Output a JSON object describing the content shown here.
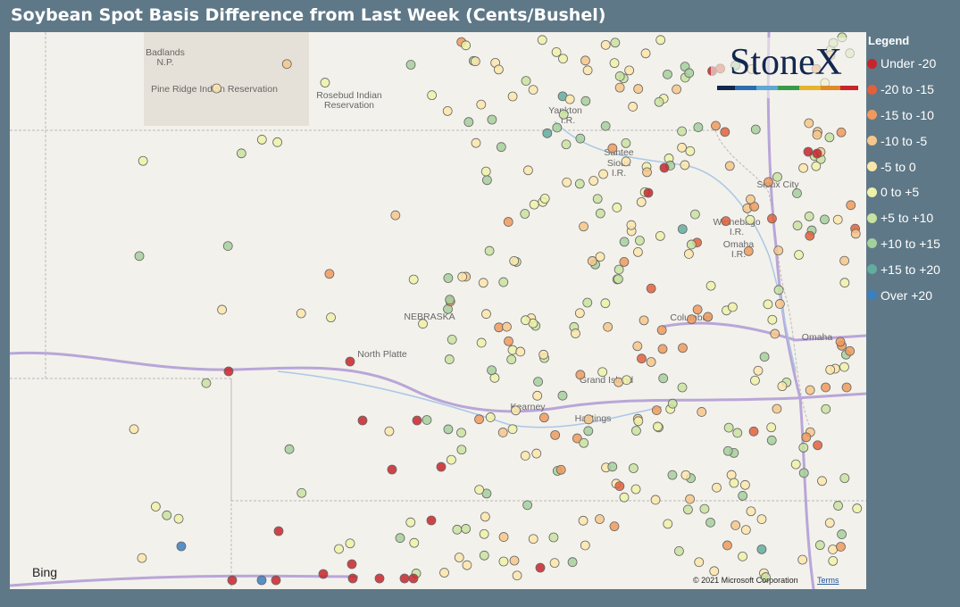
{
  "header": {
    "title": "Soybean Spot Basis Difference from Last Week (Cents/Bushel)"
  },
  "legend": {
    "title": "Legend",
    "items": [
      {
        "label": "Under -20",
        "color": "#c8242b"
      },
      {
        "label": "-20 to -15",
        "color": "#e2603c"
      },
      {
        "label": "-15 to -10",
        "color": "#ef9a5c"
      },
      {
        "label": "-10 to -5",
        "color": "#f6c78a"
      },
      {
        "label": "-5 to 0",
        "color": "#fbe6aa"
      },
      {
        "label": "0 to +5",
        "color": "#eef2a8"
      },
      {
        "label": "+5 to +10",
        "color": "#c8e3a0"
      },
      {
        "label": "+10 to +15",
        "color": "#a4d09c"
      },
      {
        "label": "+15 to +20",
        "color": "#62ad9e"
      },
      {
        "label": "Over +20",
        "color": "#3a7fc0"
      }
    ]
  },
  "logo": "StoneX",
  "map": {
    "labels": [
      "Badlands",
      "N.P.",
      "Pine Ridge Indian Reservation",
      "Rosebud Indian",
      "Reservation",
      "Yankton",
      "I.R.",
      "Santee",
      "Sioux",
      "I.R.",
      "Sioux City",
      "Winnebago",
      "I.R.",
      "Omaha",
      "I.R.",
      "NEBRASKA",
      "North Platte",
      "Columbus",
      "Omaha",
      "Grand Island",
      "Kearney",
      "Hastings"
    ],
    "attribution": "Bing",
    "copyright": "© 2021 Microsoft Corporation",
    "terms": "Terms"
  }
}
